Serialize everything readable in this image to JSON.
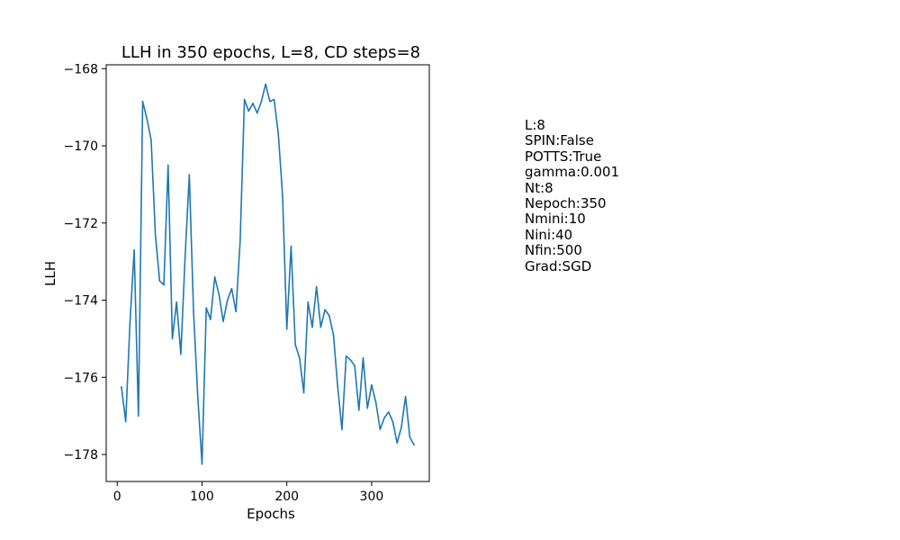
{
  "chart_data": {
    "type": "line",
    "title": "LLH in 350 epochs, L=8, CD steps=8",
    "xlabel": "Epochs",
    "ylabel": "LLH",
    "xlim": [
      -13,
      368
    ],
    "ylim": [
      -178.7,
      -167.9
    ],
    "xticks": [
      0,
      100,
      200,
      300
    ],
    "yticks": [
      -178,
      -176,
      -174,
      -172,
      -170,
      -168
    ],
    "xtick_labels": [
      "0",
      "100",
      "200",
      "300"
    ],
    "ytick_labels": [
      "−178",
      "−176",
      "−174",
      "−172",
      "−170",
      "−168"
    ],
    "grid": false,
    "color": "#1f77b4",
    "series": [
      {
        "x": [
          5,
          10,
          15,
          20,
          25,
          30,
          35,
          40,
          45,
          50,
          55,
          60,
          65,
          70,
          75,
          80,
          85,
          90,
          95,
          100,
          105,
          110,
          115,
          120,
          125,
          130,
          135,
          140,
          145,
          150,
          155,
          160,
          165,
          170,
          175,
          180,
          185,
          190,
          195,
          200,
          205,
          210,
          215,
          220,
          225,
          230,
          235,
          240,
          245,
          250,
          255,
          260,
          265,
          270,
          275,
          280,
          285,
          290,
          295,
          300,
          305,
          310,
          315,
          320,
          325,
          330,
          335,
          340,
          345,
          350
        ],
        "values": [
          -176.25,
          -177.15,
          -174.6,
          -172.7,
          -177.0,
          -168.85,
          -169.3,
          -169.85,
          -172.3,
          -173.5,
          -173.6,
          -170.5,
          -175.0,
          -174.05,
          -175.4,
          -172.9,
          -170.75,
          -174.3,
          -176.5,
          -178.25,
          -174.2,
          -174.5,
          -173.4,
          -173.85,
          -174.55,
          -174.0,
          -173.7,
          -174.3,
          -172.45,
          -168.8,
          -169.1,
          -168.9,
          -169.15,
          -168.85,
          -168.4,
          -168.85,
          -168.8,
          -169.7,
          -171.3,
          -174.75,
          -172.6,
          -175.15,
          -175.5,
          -176.4,
          -174.05,
          -174.7,
          -173.65,
          -174.7,
          -174.25,
          -174.4,
          -174.9,
          -176.25,
          -177.35,
          -175.45,
          -175.55,
          -175.7,
          -176.85,
          -175.5,
          -176.8,
          -176.2,
          -176.65,
          -177.35,
          -177.05,
          -176.9,
          -177.15,
          -177.7,
          -177.3,
          -176.5,
          -177.55,
          -177.75
        ]
      }
    ]
  },
  "params": [
    "L:8",
    "SPIN:False",
    "POTTS:True",
    "gamma:0.001",
    "Nt:8",
    "Nepoch:350",
    "Nmini:10",
    "Nini:40",
    "Nfin:500",
    "Grad:SGD"
  ]
}
